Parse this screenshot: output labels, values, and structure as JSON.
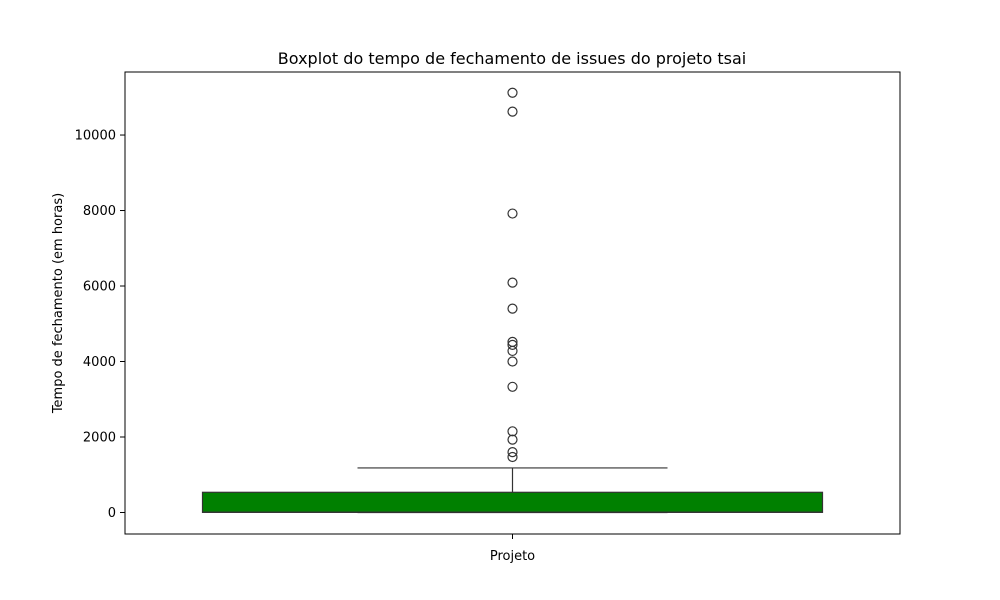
{
  "chart_data": {
    "type": "box",
    "title": "Boxplot do tempo de fechamento de issues do projeto tsai",
    "xlabel": "",
    "ylabel": "Tempo de fechamento (em horas)",
    "categories": [
      "Projeto"
    ],
    "ylim": [
      -570,
      11670
    ],
    "yticks": [
      0,
      2000,
      4000,
      6000,
      8000,
      10000
    ],
    "grid": false,
    "colors": {
      "box": "#008000",
      "line": "#333333",
      "outlier": "#333333"
    },
    "boxes": [
      {
        "category": "Projeto",
        "whisker_low": 0,
        "q1": 3,
        "median": 10,
        "q3": 535,
        "whisker_high": 1180,
        "outliers": [
          1470,
          1600,
          1930,
          2150,
          3330,
          4000,
          4280,
          4440,
          4520,
          5400,
          6090,
          7920,
          10620,
          11120
        ]
      }
    ]
  }
}
